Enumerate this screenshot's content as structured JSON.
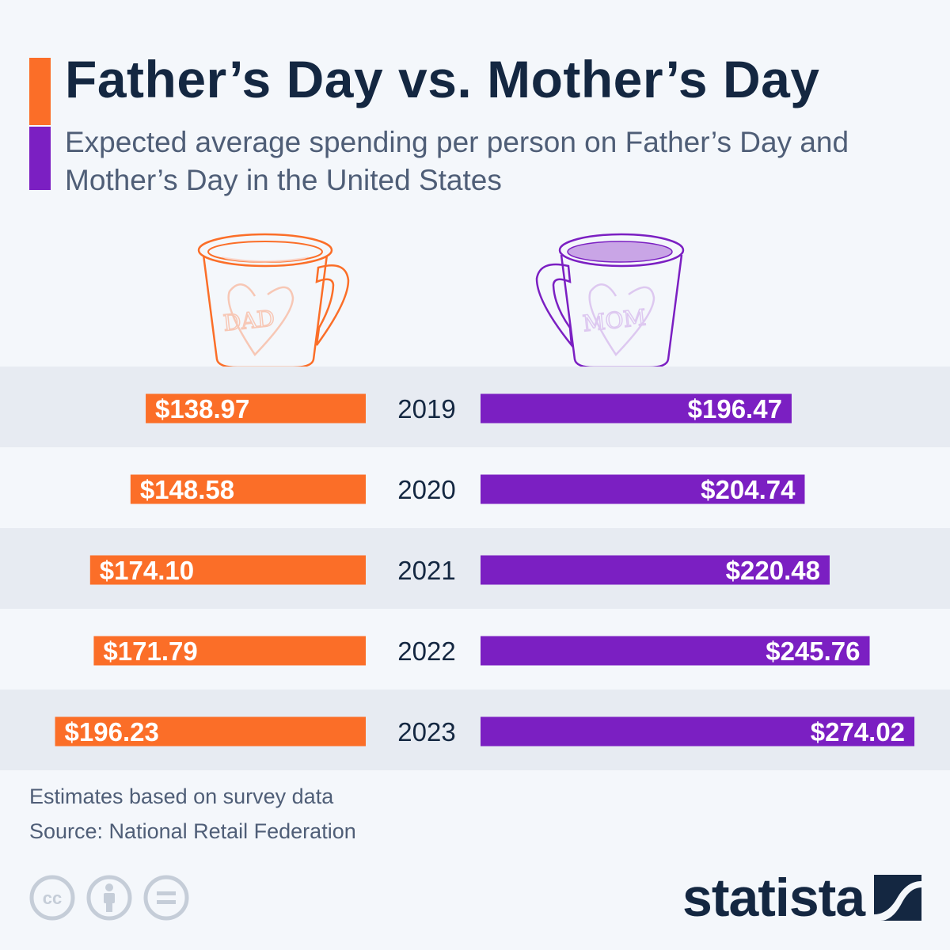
{
  "header": {
    "title": "Father’s Day vs. Mother’s Day",
    "subtitle": "Expected average spending per person on Father’s Day and Mother’s Day in the United States"
  },
  "illustrations": {
    "father_mug_text": "DAD",
    "mother_mug_text": "MOM"
  },
  "chart_data": {
    "type": "bar",
    "orientation": "horizontal-diverging",
    "categories": [
      "2019",
      "2020",
      "2021",
      "2022",
      "2023"
    ],
    "series": [
      {
        "color": "#fb6e28",
        "values": [
          138.97,
          148.58,
          174.1,
          171.79,
          196.23
        ],
        "labels": [
          "$138.97",
          "$148.58",
          "$174.10",
          "$171.79",
          "$196.23"
        ]
      },
      {
        "color": "#7b1fc2",
        "values": [
          196.47,
          204.74,
          220.48,
          245.76,
          274.02
        ],
        "labels": [
          "$196.47",
          "$204.74",
          "$220.48",
          "$245.76",
          "$274.02"
        ]
      }
    ],
    "grid": false,
    "legend": "none"
  },
  "footer": {
    "note": "Estimates based on survey data",
    "source": "Source: National Retail Federation",
    "brand": "statista",
    "license_icons": [
      "creative-commons-icon",
      "attribution-icon",
      "no-derivatives-icon"
    ]
  },
  "colors": {
    "father": "#fb6e28",
    "mother": "#7b1fc2",
    "title": "#142741",
    "text_secondary": "#4f5e77",
    "band": "#e7ebf2",
    "background": "#f4f7fb"
  }
}
